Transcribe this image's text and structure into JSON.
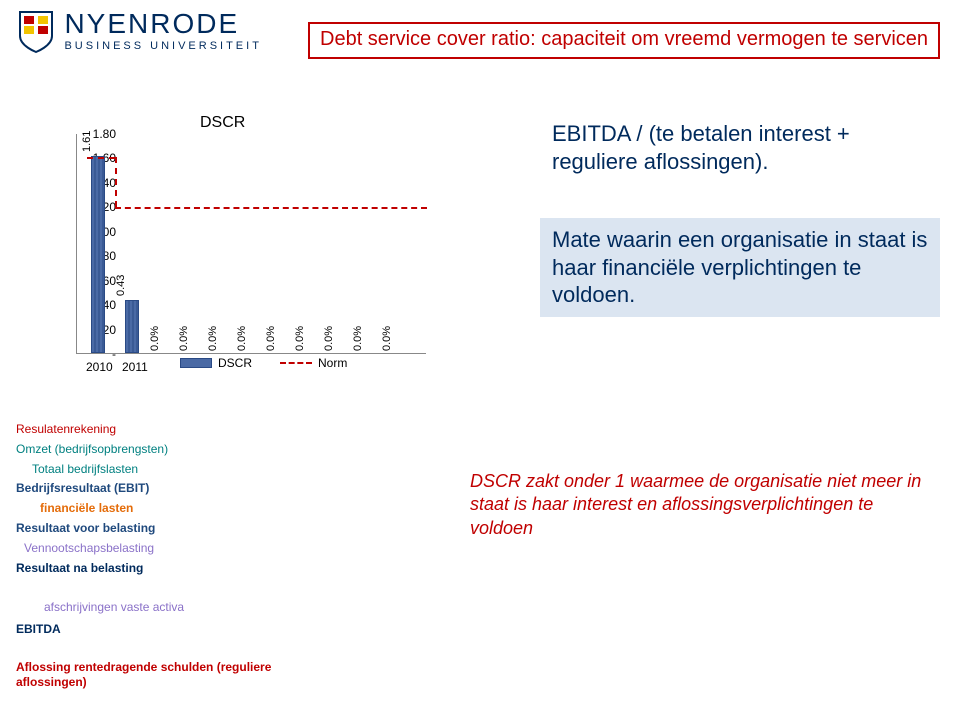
{
  "logo": {
    "main": "NYENRODE",
    "sub": "BUSINESS UNIVERSITEIT"
  },
  "title": "Debt service cover ratio: capaciteit om vreemd vermogen te servicen",
  "chart": {
    "type": "bar",
    "title": "DSCR",
    "ybase": 0,
    "ymax": 1.8,
    "ytick_step": 0.2,
    "yticks": [
      "1.80",
      "1.60",
      "1.40",
      "1.20",
      "1.00",
      "0.80",
      "0.60",
      "0.40",
      "0.20",
      "-"
    ],
    "bars": [
      {
        "label": "1.61",
        "value": 1.61
      },
      {
        "label": "0.43",
        "value": 0.43
      }
    ],
    "pct_labels": [
      "0.0%",
      "0.0%",
      "0.0%",
      "0.0%",
      "0.0%",
      "0.0%",
      "0.0%",
      "0.0%",
      "0.0%"
    ],
    "norm_value": 1.2,
    "xcats": [
      "2010",
      "2011"
    ],
    "legend": {
      "series": "DSCR",
      "norm": "Norm"
    },
    "bar_color": "#4a6aa5",
    "norm_color": "#c00000"
  },
  "info1": "EBITDA / (te betalen interest + reguliere aflossingen).",
  "info2": "Mate waarin een organisatie in staat is haar financiële verplichtingen te voldoen.",
  "pl": {
    "header": "Resulatenrekening",
    "lines": [
      {
        "text": "Omzet (bedrijfsopbrengsten)",
        "cls": "c-teal"
      },
      {
        "text": "Totaal bedrijfslasten",
        "cls": "c-teal",
        "indent": 16
      },
      {
        "text": "Bedrijfsresultaat (EBIT)",
        "cls": "c-blue"
      },
      {
        "text": "financiële lasten",
        "cls": "c-orange",
        "indent": 24
      },
      {
        "text": "Resultaat voor belasting",
        "cls": "c-blue"
      },
      {
        "text": "Vennootschapsbelasting",
        "cls": "c-lav",
        "indent": 8
      },
      {
        "text": "Resultaat na belasting",
        "cls": "c-navy"
      }
    ]
  },
  "note": "DSCR zakt onder 1 waarmee de organisatie niet meer in staat is haar interest en aflossingsverplichtingen te voldoen",
  "footer": {
    "l1": "afschrijvingen vaste activa",
    "l2": "EBITDA",
    "l3": "Aflossing rentedragende schulden (reguliere aflossingen)"
  }
}
